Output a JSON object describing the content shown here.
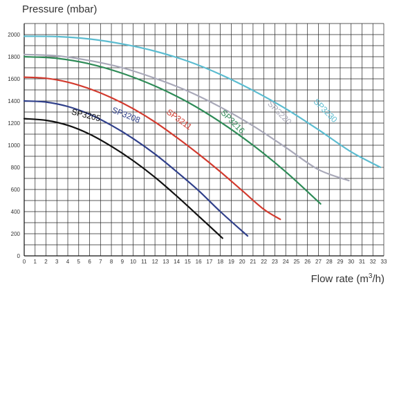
{
  "chart_data": {
    "type": "line",
    "title": "",
    "ylabel": "Pressure (mbar)",
    "xlabel_text": "Flow rate (m",
    "xlabel_sup": "3",
    "xlabel_end": "/h)",
    "xlim": [
      0,
      33
    ],
    "ylim": [
      0,
      2100
    ],
    "x_ticks": [
      0,
      1,
      2,
      3,
      4,
      5,
      6,
      7,
      8,
      9,
      10,
      11,
      12,
      13,
      14,
      15,
      16,
      17,
      18,
      19,
      20,
      21,
      22,
      23,
      24,
      25,
      26,
      27,
      28,
      29,
      30,
      31,
      32,
      33
    ],
    "y_ticks": [
      0,
      200,
      400,
      600,
      800,
      1000,
      1200,
      1400,
      1600,
      1800,
      2000
    ],
    "grid": true,
    "series": [
      {
        "name": "SP3205",
        "color": "#111111",
        "x": [
          0,
          2,
          4,
          6,
          8,
          10,
          12,
          14,
          16,
          18.2
        ],
        "y": [
          1240,
          1225,
          1180,
          1100,
          990,
          860,
          710,
          540,
          360,
          160
        ]
      },
      {
        "name": "SP3208",
        "color": "#2f3f8a",
        "x": [
          0,
          2,
          4,
          6,
          8,
          10,
          12,
          14,
          16,
          18,
          20.5
        ],
        "y": [
          1400,
          1390,
          1350,
          1280,
          1180,
          1060,
          920,
          760,
          590,
          400,
          180
        ]
      },
      {
        "name": "SP3211",
        "color": "#d23a2e",
        "x": [
          0,
          2,
          4,
          6,
          8,
          10,
          12,
          14,
          16,
          18,
          20,
          22,
          23.5
        ],
        "y": [
          1615,
          1605,
          1570,
          1510,
          1430,
          1330,
          1210,
          1070,
          920,
          760,
          590,
          420,
          330
        ]
      },
      {
        "name": "SP3216",
        "color": "#2e8b57",
        "x": [
          0,
          3,
          6,
          9,
          12,
          15,
          18,
          21,
          24,
          27.2
        ],
        "y": [
          1800,
          1785,
          1735,
          1650,
          1535,
          1390,
          1210,
          1000,
          760,
          470
        ]
      },
      {
        "name": "SP3220",
        "color": "#a8a8b8",
        "x": [
          0,
          3,
          6,
          9,
          12,
          15,
          18,
          21,
          24,
          27,
          29.8
        ],
        "y": [
          1820,
          1808,
          1765,
          1700,
          1605,
          1490,
          1345,
          1175,
          980,
          780,
          680
        ]
      },
      {
        "name": "SP3230",
        "color": "#5bbcd0",
        "x": [
          0,
          3,
          6,
          9,
          12,
          15,
          18,
          21,
          24,
          27,
          30,
          32.7
        ],
        "y": [
          1985,
          1982,
          1960,
          1915,
          1850,
          1760,
          1640,
          1495,
          1330,
          1140,
          940,
          800
        ]
      }
    ],
    "labels": [
      {
        "text": "SP3205",
        "x": 4.3,
        "y": 1280,
        "rot": 14,
        "color": "#111111"
      },
      {
        "text": "SP3208",
        "x": 8.0,
        "y": 1300,
        "rot": 22,
        "color": "#2f3f8a"
      },
      {
        "text": "SP3211",
        "x": 13.0,
        "y": 1290,
        "rot": 36,
        "color": "#d23a2e"
      },
      {
        "text": "SP3216",
        "x": 18.0,
        "y": 1290,
        "rot": 45,
        "color": "#2e8b57"
      },
      {
        "text": "SP3220",
        "x": 22.3,
        "y": 1370,
        "rot": 45,
        "color": "#a8a8b8"
      },
      {
        "text": "SP3230",
        "x": 26.5,
        "y": 1390,
        "rot": 45,
        "color": "#5bbcd0"
      }
    ]
  }
}
